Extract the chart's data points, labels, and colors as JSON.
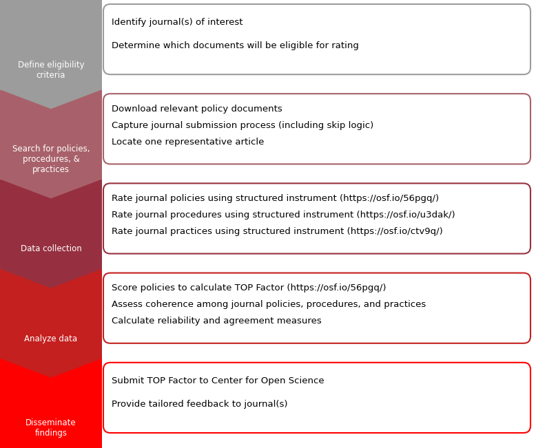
{
  "steps": [
    {
      "label": "Define eligibility\ncriteria",
      "color": "#9C9C9C",
      "lines": [
        "Identify journal(s) of interest",
        "Determine which documents will be eligible for rating"
      ],
      "box_border": "#9C9C9C"
    },
    {
      "label": "Search for policies,\nprocedures, &\npractices",
      "color": "#A8616A",
      "lines": [
        "Download relevant policy documents",
        "Capture journal submission process (including skip logic)",
        "Locate one representative article"
      ],
      "box_border": "#A8616A"
    },
    {
      "label": "Data collection",
      "color": "#963040",
      "lines": [
        "Rate journal policies using structured instrument (https://osf.io/56pgq/)",
        "Rate journal procedures using structured instrument (https://osf.io/u3dak/)",
        "Rate journal practices using structured instrument (https://osf.io/ctv9q/)"
      ],
      "box_border": "#963040"
    },
    {
      "label": "Analyze data",
      "color": "#C42020",
      "lines": [
        "Score policies to calculate TOP Factor (https://osf.io/56pgq/)",
        "Assess coherence among journal policies, procedures, and practices",
        "Calculate reliability and agreement measures"
      ],
      "box_border": "#C42020"
    },
    {
      "label": "Disseminate\nfindings",
      "color": "#FF0000",
      "lines": [
        "Submit TOP Factor to Center for Open Science",
        "Provide tailored feedback to journal(s)"
      ],
      "box_border": "#FF0000"
    }
  ],
  "bg_color": "#ffffff",
  "text_color": "#000000",
  "label_text_color": "#ffffff",
  "figsize": [
    7.78,
    6.51
  ],
  "dpi": 100
}
